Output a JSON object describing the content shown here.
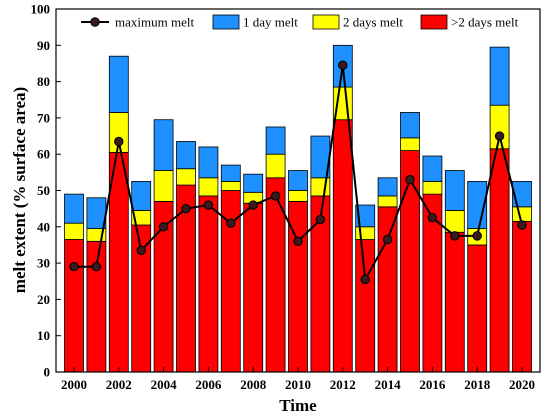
{
  "chart_data": {
    "type": "bar",
    "stacked": true,
    "xlabel": "Time",
    "ylabel": "melt extent (% surface area)",
    "ylim": [
      0,
      100
    ],
    "yticks": [
      0,
      10,
      20,
      30,
      40,
      50,
      60,
      70,
      80,
      90,
      100
    ],
    "xticks": [
      "2000",
      "2002",
      "2004",
      "2006",
      "2008",
      "2010",
      "2012",
      "2014",
      "2016",
      "2018",
      "2020"
    ],
    "grid": false,
    "legend_position": "top",
    "categories": [
      "2000",
      "2001",
      "2002",
      "2003",
      "2004",
      "2005",
      "2006",
      "2007",
      "2008",
      "2009",
      "2010",
      "2011",
      "2012",
      "2013",
      "2014",
      "2015",
      "2016",
      "2017",
      "2018",
      "2019",
      "2020"
    ],
    "series": [
      {
        "name": ">2 days melt",
        "color": "#ff0000",
        "kind": "bar",
        "values": [
          36.5,
          36.0,
          60.5,
          40.5,
          47.0,
          51.5,
          48.5,
          50.0,
          46.5,
          53.5,
          47.0,
          48.5,
          69.5,
          36.5,
          45.5,
          61.0,
          49.0,
          38.5,
          35.0,
          61.5,
          41.5
        ]
      },
      {
        "name": "2 days melt",
        "color": "#ffff00",
        "kind": "bar",
        "values": [
          4.5,
          3.5,
          11.0,
          4.0,
          8.5,
          4.5,
          5.0,
          2.5,
          3.0,
          6.5,
          3.0,
          5.0,
          9.0,
          3.5,
          3.0,
          3.5,
          3.5,
          6.0,
          4.5,
          12.0,
          4.0
        ]
      },
      {
        "name": "1 day melt",
        "color": "#1e90ff",
        "kind": "bar",
        "values": [
          8.0,
          8.5,
          15.5,
          8.0,
          14.0,
          7.5,
          8.5,
          4.5,
          5.0,
          7.5,
          5.5,
          11.5,
          11.5,
          6.0,
          5.0,
          7.0,
          7.0,
          11.0,
          13.0,
          16.0,
          7.0
        ]
      },
      {
        "name": "maximum melt",
        "color": "#000000",
        "kind": "line",
        "values": [
          29.0,
          29.0,
          63.5,
          33.5,
          40.0,
          45.0,
          46.0,
          41.0,
          46.0,
          48.5,
          36.0,
          42.0,
          84.5,
          25.5,
          36.5,
          53.0,
          42.5,
          37.5,
          37.5,
          65.0,
          40.5
        ]
      }
    ]
  }
}
